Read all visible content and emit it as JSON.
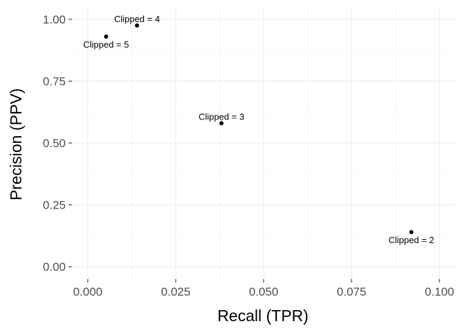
{
  "chart_data": {
    "type": "scatter",
    "title": "",
    "xlabel": "Recall (TPR)",
    "ylabel": "Precision (PPV)",
    "xlim": [
      -0.0045,
      0.1045
    ],
    "ylim": [
      -0.05,
      1.05
    ],
    "x_ticks": [
      0.0,
      0.025,
      0.05,
      0.075,
      0.1
    ],
    "x_tick_labels": [
      "0.000",
      "0.025",
      "0.050",
      "0.075",
      "0.100"
    ],
    "y_ticks": [
      0.0,
      0.25,
      0.5,
      0.75,
      1.0
    ],
    "y_tick_labels": [
      "0.00",
      "0.25",
      "0.50",
      "0.75",
      "1.00"
    ],
    "grid": true,
    "series": [
      {
        "points": [
          {
            "x": 0.0052,
            "y": 0.93,
            "label": "Clipped = 5",
            "label_pos": "below"
          },
          {
            "x": 0.014,
            "y": 0.975,
            "label": "Clipped = 4",
            "label_pos": "above"
          },
          {
            "x": 0.038,
            "y": 0.58,
            "label": "Clipped = 3",
            "label_pos": "above"
          },
          {
            "x": 0.092,
            "y": 0.14,
            "label": "Clipped = 2",
            "label_pos": "below"
          }
        ]
      }
    ],
    "colors": {
      "point": "#000000",
      "grid": "#ebebeb",
      "tick_label": "#4d4d4d"
    }
  }
}
